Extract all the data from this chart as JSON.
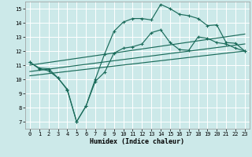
{
  "xlabel": "Humidex (Indice chaleur)",
  "xlim": [
    -0.5,
    23.5
  ],
  "ylim": [
    6.5,
    15.5
  ],
  "yticks": [
    7,
    8,
    9,
    10,
    11,
    12,
    13,
    14,
    15
  ],
  "xticks": [
    0,
    1,
    2,
    3,
    4,
    5,
    6,
    7,
    8,
    9,
    10,
    11,
    12,
    13,
    14,
    15,
    16,
    17,
    18,
    19,
    20,
    21,
    22,
    23
  ],
  "background_color": "#cce9e9",
  "line_color": "#1a6b5a",
  "grid_color": "#ffffff",
  "line1_x": [
    0,
    1,
    2,
    3,
    4,
    5,
    6,
    7,
    8,
    9,
    10,
    11,
    12,
    13,
    14,
    15,
    16,
    17,
    18,
    19,
    20,
    21,
    22,
    23
  ],
  "line1_y": [
    11.2,
    10.8,
    10.75,
    10.1,
    9.3,
    7.0,
    8.1,
    10.0,
    11.8,
    13.4,
    14.05,
    14.3,
    14.3,
    14.2,
    15.3,
    15.0,
    14.6,
    14.5,
    14.3,
    13.8,
    13.85,
    12.6,
    12.55,
    12.0
  ],
  "line2_x": [
    0,
    1,
    2,
    3,
    4,
    5,
    6,
    7,
    8,
    9,
    10,
    11,
    12,
    13,
    14,
    15,
    16,
    17,
    18,
    19,
    20,
    21,
    22,
    23
  ],
  "line2_y": [
    11.2,
    10.75,
    10.6,
    10.1,
    9.25,
    7.0,
    8.1,
    9.85,
    10.5,
    11.85,
    12.2,
    12.3,
    12.5,
    13.3,
    13.5,
    12.6,
    12.1,
    12.05,
    13.0,
    12.9,
    12.6,
    12.5,
    12.2,
    12.0
  ],
  "line3_x": [
    0,
    23
  ],
  "line3_y": [
    11.0,
    13.2
  ],
  "line4_x": [
    0,
    23
  ],
  "line4_y": [
    10.55,
    12.5
  ],
  "line5_x": [
    0,
    23
  ],
  "line5_y": [
    10.25,
    12.0
  ]
}
